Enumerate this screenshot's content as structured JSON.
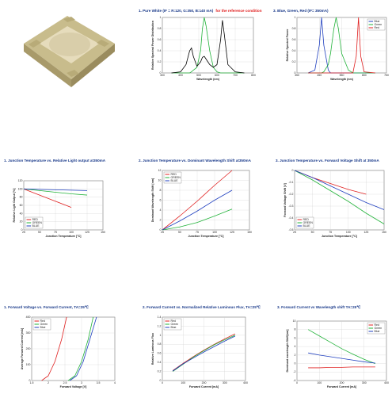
{
  "chart_data": [
    {
      "type": "line",
      "title": "1. Pure White (IF = R:120, G:350, B:140 mA)",
      "note": "for the reference condition",
      "x_label": "Wavelength (nm)",
      "y_label": "Relative Spectral Power Distribution",
      "xlim": [
        300,
        800
      ],
      "xticks": [
        300,
        400,
        500,
        600,
        700,
        800
      ],
      "ylim": [
        0,
        1
      ],
      "yticks": [
        0,
        0.2,
        0.4,
        0.6,
        0.8,
        1
      ],
      "grid": true,
      "x": [
        350,
        400,
        430,
        450,
        460,
        470,
        490,
        510,
        520,
        530,
        540,
        560,
        580,
        600,
        620,
        630,
        640,
        660,
        700,
        750
      ],
      "series": [
        {
          "color": "#22b33a",
          "values": [
            0,
            0,
            0,
            0,
            0.02,
            0.05,
            0.1,
            0.4,
            0.8,
            1.0,
            0.85,
            0.4,
            0.1,
            0.02,
            0,
            0,
            0,
            0,
            0,
            0
          ]
        },
        {
          "color": "#000000",
          "values": [
            0,
            0.02,
            0.15,
            0.4,
            0.45,
            0.3,
            0.12,
            0.2,
            0.28,
            0.3,
            0.25,
            0.15,
            0.1,
            0.15,
            0.6,
            0.95,
            0.7,
            0.15,
            0.02,
            0
          ]
        }
      ]
    },
    {
      "type": "line",
      "title": "3. Blue, Green, Red (IF= 350mA)",
      "x_label": "Wavelength (nm)",
      "y_label": "Relative Spectral Power",
      "xlim": [
        350,
        750
      ],
      "xticks": [
        350,
        450,
        550,
        650,
        750
      ],
      "ylim": [
        0,
        1
      ],
      "yticks": [
        0,
        0.2,
        0.4,
        0.6,
        0.8,
        1
      ],
      "grid": true,
      "legend": "top-right",
      "x": [
        400,
        430,
        450,
        460,
        470,
        490,
        500,
        515,
        525,
        535,
        550,
        580,
        600,
        615,
        625,
        635,
        650,
        700
      ],
      "series": [
        {
          "name": "Blue",
          "color": "#1f3fbf",
          "values": [
            0,
            0.05,
            0.5,
            1.0,
            0.5,
            0.05,
            0,
            0,
            0,
            0,
            0,
            0,
            0,
            0,
            0,
            0,
            0,
            0
          ]
        },
        {
          "name": "Green",
          "color": "#22b33a",
          "values": [
            0,
            0,
            0,
            0,
            0.02,
            0.15,
            0.35,
            0.8,
            1.0,
            0.8,
            0.35,
            0.05,
            0,
            0,
            0,
            0,
            0,
            0
          ]
        },
        {
          "name": "Red",
          "color": "#e02020",
          "values": [
            0,
            0,
            0,
            0,
            0,
            0,
            0,
            0,
            0,
            0,
            0,
            0,
            0,
            0.3,
            1.0,
            0.3,
            0.02,
            0
          ]
        }
      ]
    },
    {
      "type": "line",
      "title": "1. Junction Temperature vs. Relative Light output at350mA",
      "x_label": "Junction Temperature [°C]",
      "y_label": "Relative Light Output [%]",
      "xlim": [
        25,
        150
      ],
      "xticks": [
        25,
        50,
        75,
        100,
        125,
        150
      ],
      "ylim": [
        0,
        120
      ],
      "yticks": [
        0,
        20,
        40,
        60,
        80,
        100,
        120
      ],
      "grid": true,
      "legend": "bottom-left",
      "x": [
        25,
        50,
        75,
        100,
        125
      ],
      "series": [
        {
          "name": "RED",
          "color": "#e02020",
          "values": [
            100,
            85,
            70,
            55,
            null
          ]
        },
        {
          "name": "GREEN",
          "color": "#22b33a",
          "values": [
            100,
            96,
            92,
            88,
            85
          ]
        },
        {
          "name": "BLUE",
          "color": "#1f3fbf",
          "values": [
            100,
            99,
            98,
            97,
            96
          ]
        }
      ]
    },
    {
      "type": "line",
      "title": "2. Junction Temperature vs. Dominant Wavelength Shift at350mA",
      "x_label": "Junction Temperature [°C]",
      "y_label": "Dominant Wavelength Shift [nm]",
      "xlim": [
        25,
        150
      ],
      "xticks": [
        25,
        50,
        75,
        100,
        125,
        150
      ],
      "ylim": [
        0,
        12
      ],
      "yticks": [
        0,
        2,
        4,
        6,
        8,
        10,
        12
      ],
      "grid": true,
      "legend": "top-left",
      "x": [
        25,
        50,
        75,
        100,
        125
      ],
      "series": [
        {
          "name": "RED",
          "color": "#e02020",
          "values": [
            0,
            2.8,
            5.8,
            9,
            12
          ]
        },
        {
          "name": "GREEN",
          "color": "#22b33a",
          "values": [
            0,
            0.6,
            1.5,
            2.8,
            4.2
          ]
        },
        {
          "name": "BLUE",
          "color": "#1f3fbf",
          "values": [
            0,
            1.8,
            3.8,
            6,
            8
          ]
        }
      ]
    },
    {
      "type": "line",
      "title": "3. Junction Temperature vs. Forward Voltage Shift at 350mA",
      "x_label": "Junction Temperature [°C]",
      "y_label": "Forward Voltage Shift [V]",
      "xlim": [
        25,
        150
      ],
      "xticks": [
        25,
        50,
        75,
        100,
        125,
        150
      ],
      "ylim": [
        -0.5,
        0
      ],
      "yticks": [
        -0.5,
        -0.4,
        -0.3,
        -0.2,
        -0.1,
        0
      ],
      "grid": true,
      "legend": "bottom-left",
      "x": [
        25,
        50,
        75,
        100,
        125,
        150
      ],
      "series": [
        {
          "name": "RED",
          "color": "#e02020",
          "values": [
            0,
            -0.06,
            -0.11,
            -0.16,
            -0.2,
            null
          ]
        },
        {
          "name": "GREEN",
          "color": "#22b33a",
          "values": [
            0,
            -0.08,
            -0.17,
            -0.26,
            -0.36,
            -0.45
          ]
        },
        {
          "name": "BLUE",
          "color": "#1f3fbf",
          "values": [
            0,
            -0.06,
            -0.13,
            -0.2,
            -0.27,
            -0.33
          ]
        }
      ]
    },
    {
      "type": "line",
      "title": "1. Forward Voltage vs. Forward Current, TA=25℃",
      "x_label": "Forward Voltage [V]",
      "y_label": "Average Forward Current [mA]",
      "xlim": [
        1.5,
        4
      ],
      "xticks": [
        1.5,
        2,
        2.5,
        3,
        3.5,
        4
      ],
      "ylim": [
        0,
        400
      ],
      "yticks": [
        0,
        100,
        200,
        300,
        400
      ],
      "grid": true,
      "legend": "top-left",
      "series": [
        {
          "name": "Red",
          "color": "#e02020",
          "x": [
            1.8,
            2,
            2.2,
            2.4,
            2.55
          ],
          "values": [
            0,
            30,
            120,
            260,
            400
          ]
        },
        {
          "name": "Green",
          "color": "#22b33a",
          "x": [
            2.6,
            2.8,
            3,
            3.2,
            3.35
          ],
          "values": [
            0,
            30,
            120,
            260,
            400
          ]
        },
        {
          "name": "Blue",
          "color": "#1f3fbf",
          "x": [
            2.65,
            2.85,
            3.05,
            3.25,
            3.45
          ],
          "values": [
            0,
            30,
            120,
            260,
            400
          ]
        }
      ]
    },
    {
      "type": "line",
      "title": "2. Forward Current vs. Normalized Relative Luminous Flux, TA=25℃",
      "x_label": "Forward Current [mA]",
      "y_label": "Relative Luminous Flux",
      "xlim": [
        0,
        400
      ],
      "xticks": [
        0,
        100,
        200,
        300,
        400
      ],
      "ylim": [
        0,
        1.4
      ],
      "yticks": [
        0,
        0.2,
        0.4,
        0.6,
        0.8,
        1,
        1.2,
        1.4
      ],
      "grid": true,
      "legend": "top-left",
      "x": [
        50,
        100,
        150,
        200,
        250,
        300,
        350
      ],
      "series": [
        {
          "name": "Red",
          "color": "#e02020",
          "values": [
            0.22,
            0.38,
            0.53,
            0.67,
            0.8,
            0.92,
            1.03
          ]
        },
        {
          "name": "Green",
          "color": "#22b33a",
          "values": [
            0.2,
            0.36,
            0.52,
            0.66,
            0.79,
            0.9,
            1.0
          ]
        },
        {
          "name": "Blue",
          "color": "#1f3fbf",
          "values": [
            0.21,
            0.37,
            0.5,
            0.63,
            0.75,
            0.87,
            0.98
          ]
        }
      ]
    },
    {
      "type": "line",
      "title": "3. Forward Current   vs Wavelength shift  TA=25℃",
      "x_label": "Forward Current [mA]",
      "y_label": "Dominant wavelength Shift[nm]",
      "xlim": [
        0,
        400
      ],
      "xticks": [
        0,
        100,
        200,
        300,
        400
      ],
      "ylim": [
        -4,
        10
      ],
      "yticks": [
        -4,
        -2,
        0,
        2,
        4,
        6,
        8,
        10
      ],
      "grid": true,
      "legend": "top-right",
      "x": [
        50,
        100,
        150,
        200,
        250,
        300,
        350
      ],
      "series": [
        {
          "name": "Red",
          "color": "#e02020",
          "values": [
            -1,
            -1,
            -0.9,
            -0.9,
            -0.8,
            -0.8,
            -0.8
          ]
        },
        {
          "name": "Green",
          "color": "#22b33a",
          "values": [
            8,
            6.5,
            5,
            3.5,
            2.2,
            1,
            0
          ]
        },
        {
          "name": "Blue",
          "color": "#1f3fbf",
          "values": [
            2.5,
            2,
            1.6,
            1.2,
            0.8,
            0.4,
            0.1
          ]
        }
      ]
    }
  ]
}
